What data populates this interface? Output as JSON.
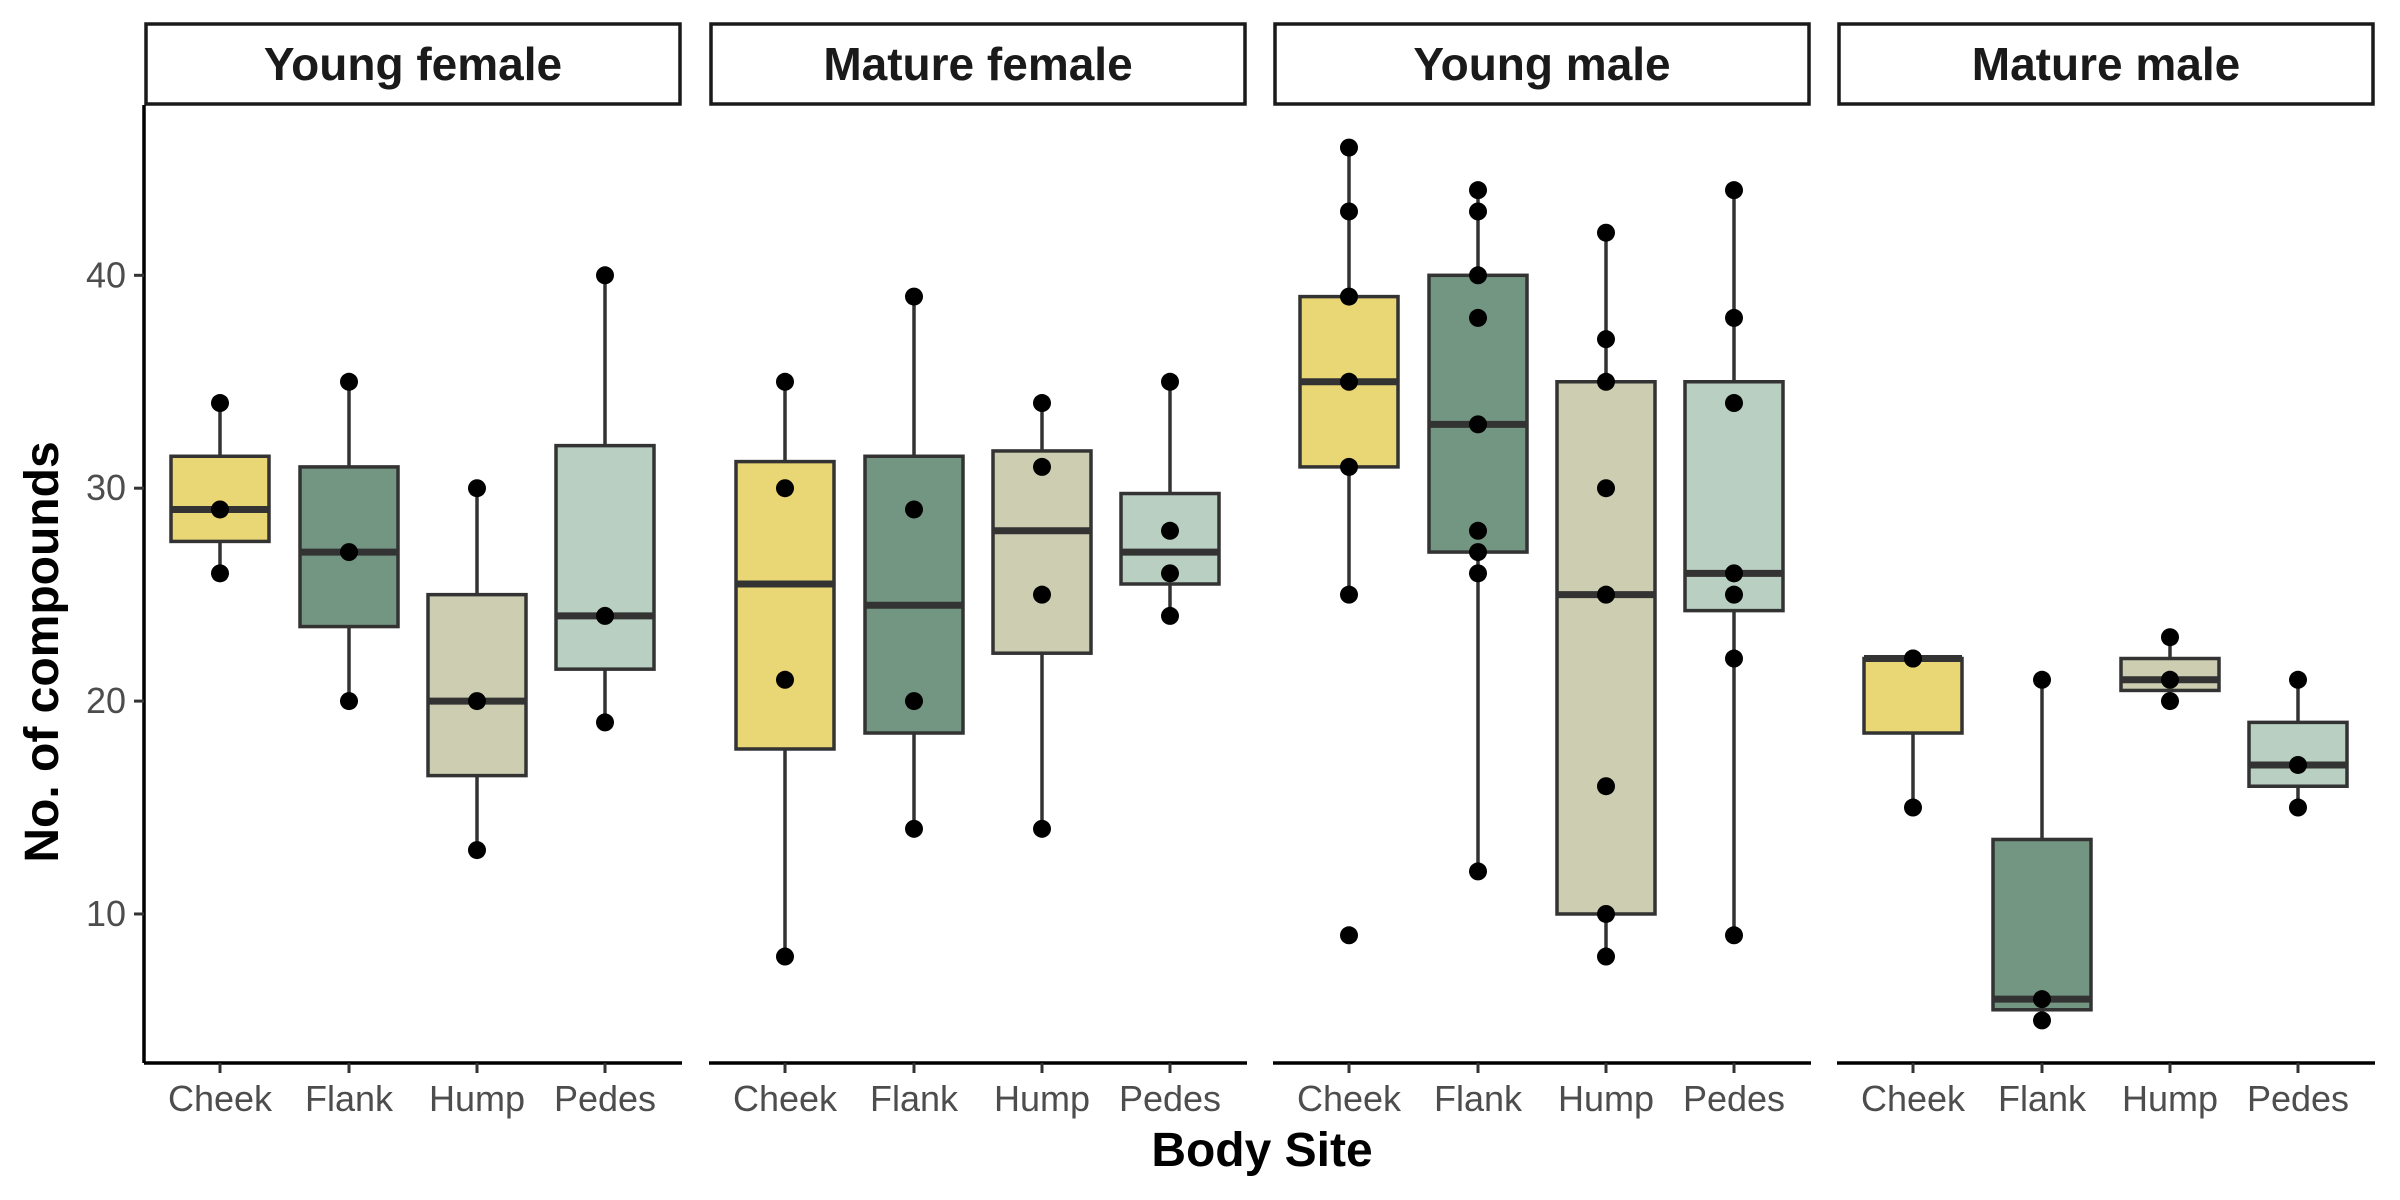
{
  "chart_data": {
    "type": "boxplot",
    "xlabel": "Body Site",
    "ylabel": "No. of compounds",
    "ylim": [
      3,
      48
    ],
    "yticks": [
      10,
      20,
      30,
      40
    ],
    "categories": [
      "Cheek",
      "Flank",
      "Hump",
      "Pedes"
    ],
    "colors": {
      "Cheek": "#E9D675",
      "Flank": "#739683",
      "Hump": "#CDCDB1",
      "Pedes": "#B8CFC1"
    },
    "facets": [
      {
        "label": "Young female",
        "boxes": [
          {
            "category": "Cheek",
            "min": 26,
            "q1": 27.5,
            "median": 29,
            "q3": 31.5,
            "max": 34,
            "points": [
              26,
              29,
              34
            ]
          },
          {
            "category": "Flank",
            "min": 20,
            "q1": 23.5,
            "median": 27,
            "q3": 31,
            "max": 35,
            "points": [
              20,
              27,
              35
            ]
          },
          {
            "category": "Hump",
            "min": 13,
            "q1": 16.5,
            "median": 20,
            "q3": 25,
            "max": 30,
            "points": [
              13,
              20,
              30
            ]
          },
          {
            "category": "Pedes",
            "min": 19,
            "q1": 21.5,
            "median": 24,
            "q3": 32,
            "max": 40,
            "points": [
              19,
              24,
              40
            ]
          }
        ]
      },
      {
        "label": "Mature female",
        "boxes": [
          {
            "category": "Cheek",
            "min": 8,
            "q1": 17.75,
            "median": 25.5,
            "q3": 31.25,
            "max": 35,
            "points": [
              8,
              21,
              30,
              35
            ]
          },
          {
            "category": "Flank",
            "min": 14,
            "q1": 18.5,
            "median": 24.5,
            "q3": 31.5,
            "max": 39,
            "points": [
              14,
              20,
              29,
              39
            ]
          },
          {
            "category": "Hump",
            "min": 14,
            "q1": 22.25,
            "median": 28,
            "q3": 31.75,
            "max": 34,
            "points": [
              14,
              25,
              31,
              34
            ]
          },
          {
            "category": "Pedes",
            "min": 24,
            "q1": 25.5,
            "median": 27,
            "q3": 29.75,
            "max": 35,
            "points": [
              24,
              26,
              28,
              35
            ]
          }
        ]
      },
      {
        "label": "Young male",
        "boxes": [
          {
            "category": "Cheek",
            "min": 25,
            "q1": 31,
            "median": 35,
            "q3": 39,
            "max": 46,
            "points": [
              9,
              25,
              31,
              35,
              39,
              43,
              46
            ]
          },
          {
            "category": "Flank",
            "min": 12,
            "q1": 27,
            "median": 33,
            "q3": 40,
            "max": 44,
            "points": [
              12,
              26,
              27,
              28,
              33,
              38,
              40,
              43,
              44
            ]
          },
          {
            "category": "Hump",
            "min": 8,
            "q1": 10,
            "median": 25,
            "q3": 35,
            "max": 42,
            "points": [
              8,
              10,
              16,
              25,
              30,
              35,
              37,
              42
            ]
          },
          {
            "category": "Pedes",
            "min": 9,
            "q1": 24.25,
            "median": 26,
            "q3": 35,
            "max": 44,
            "points": [
              9,
              22,
              25,
              26,
              34,
              38,
              44
            ]
          }
        ]
      },
      {
        "label": "Mature male",
        "boxes": [
          {
            "category": "Cheek",
            "min": 15,
            "q1": 18.5,
            "median": 22,
            "q3": 22,
            "max": 22,
            "points": [
              15,
              22,
              22
            ]
          },
          {
            "category": "Flank",
            "min": 5,
            "q1": 5.5,
            "median": 6,
            "q3": 13.5,
            "max": 21,
            "points": [
              5,
              6,
              21
            ]
          },
          {
            "category": "Hump",
            "min": 20,
            "q1": 20.5,
            "median": 21,
            "q3": 22,
            "max": 23,
            "points": [
              20,
              21,
              23
            ]
          },
          {
            "category": "Pedes",
            "min": 15,
            "q1": 16,
            "median": 17,
            "q3": 19,
            "max": 21,
            "points": [
              15,
              17,
              21
            ]
          }
        ]
      }
    ]
  }
}
